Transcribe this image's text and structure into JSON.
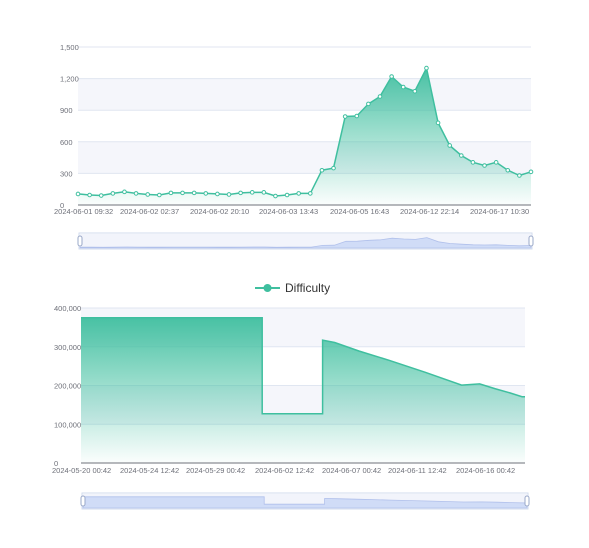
{
  "colors": {
    "series": "#3fbf9f",
    "series_fill_top": "#3fbf9f",
    "band": "#f5f6fb",
    "grid": "#e0e6f1",
    "axis_text": "#6e7079",
    "zoom_border": "#d2dbee",
    "zoom_fill": "#dbe5fb"
  },
  "chart_data": [
    {
      "type": "area",
      "title": "",
      "xlabel": "",
      "ylabel": "",
      "ylim": [
        0,
        1500
      ],
      "yticks": [
        "0",
        "300",
        "600",
        "900",
        "1,200",
        "1,500"
      ],
      "xticks": [
        "2024-06-01 09:32",
        "2024-06-02 02:37",
        "2024-06-02 20:10",
        "2024-06-03 13:43",
        "2024-06-05 16:43",
        "2024-06-12 22:14",
        "2024-06-17 10:30"
      ],
      "series": [
        {
          "values": [
            105,
            95,
            90,
            110,
            125,
            110,
            100,
            95,
            115,
            115,
            115,
            110,
            105,
            100,
            115,
            120,
            120,
            85,
            95,
            110,
            110,
            330,
            350,
            840,
            845,
            960,
            1030,
            1220,
            1120,
            1080,
            1300,
            780,
            565,
            470,
            405,
            375,
            405,
            330,
            280,
            315
          ],
          "markers": true
        }
      ],
      "grid": true,
      "dataZoom": true
    },
    {
      "type": "area",
      "title": "",
      "xlabel": "",
      "ylabel": "",
      "ylim": [
        0,
        400000
      ],
      "yticks": [
        "0",
        "100,000",
        "200,000",
        "300,000",
        "400,000"
      ],
      "xticks": [
        "2024-05-20 00:42",
        "2024-05-24 12:42",
        "2024-05-29 00:42",
        "2024-06-02 12:42",
        "2024-06-07 00:42",
        "2024-06-11 12:42",
        "2024-06-16 00:42"
      ],
      "legend": {
        "position": "top-center",
        "entries": [
          "Difficulty"
        ]
      },
      "series": [
        {
          "name": "Difficulty",
          "step": true,
          "points": [
            [
              0,
              375000
            ],
            [
              3,
              375000
            ],
            [
              3,
              127000
            ],
            [
              4,
              127000
            ],
            [
              4,
              317000
            ],
            [
              4.2,
              311000
            ],
            [
              4.6,
              289000
            ],
            [
              5.1,
              265000
            ],
            [
              5.7,
              234000
            ],
            [
              6.3,
              201000
            ],
            [
              6.6,
              204000
            ],
            [
              6.85,
              192000
            ],
            [
              7.1,
              181000
            ],
            [
              7.3,
              171000
            ],
            [
              7.35,
              171000
            ]
          ]
        }
      ],
      "grid": true,
      "dataZoom": true
    }
  ]
}
